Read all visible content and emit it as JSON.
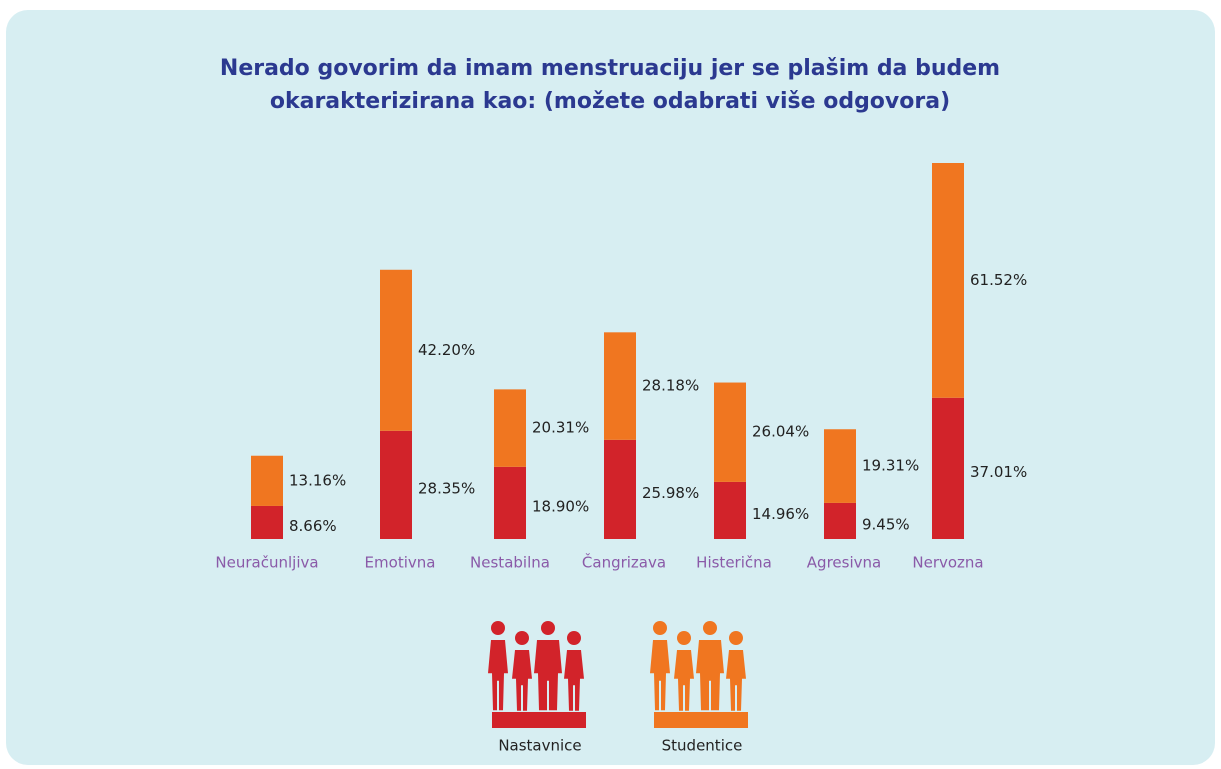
{
  "chart_data": {
    "type": "stacked_bar",
    "title": "Nerado govorim da imam menstruaciju jer se plašim da budem okarakterizirana kao: (možete odabrati više odgovora)",
    "categories": [
      "Neuračunljiva",
      "Emotivna",
      "Nestabilna",
      "Čangrizava",
      "Histerična",
      "Agresivna",
      "Nervozna"
    ],
    "series": [
      {
        "name": "Nastavnice",
        "color": "#d2232a",
        "values": [
          8.66,
          28.35,
          18.9,
          25.98,
          14.96,
          9.45,
          37.01
        ],
        "value_labels": [
          "8.66%",
          "28.35%",
          "18.90%",
          "25.98%",
          "14.96%",
          "9.45%",
          "37.01%"
        ]
      },
      {
        "name": "Studentice",
        "color": "#f07620",
        "values": [
          13.16,
          42.2,
          20.31,
          28.18,
          26.04,
          19.31,
          61.52
        ],
        "value_labels": [
          "13.16%",
          "42.20%",
          "20.31%",
          "28.18%",
          "26.04%",
          "19.31%",
          "61.52%"
        ]
      }
    ]
  }
}
